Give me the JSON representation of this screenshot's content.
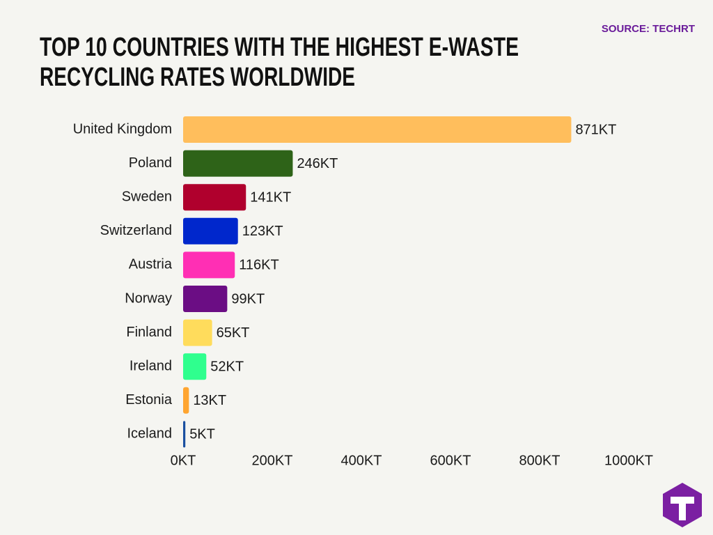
{
  "chart_data": {
    "type": "bar",
    "orientation": "horizontal",
    "title": [
      "TOP 10 COUNTRIES WITH THE HIGHEST E-WASTE",
      "RECYCLING RATES WORLDWIDE"
    ],
    "source": "SOURCE: TECHRT",
    "categories": [
      "United Kingdom",
      "Poland",
      "Sweden",
      "Switzerland",
      "Austria",
      "Norway",
      "Finland",
      "Ireland",
      "Estonia",
      "Iceland"
    ],
    "values": [
      871,
      246,
      141,
      123,
      116,
      99,
      65,
      52,
      13,
      5
    ],
    "value_labels": [
      "871KT",
      "246KT",
      "141KT",
      "123KT",
      "116KT",
      "99KT",
      "65KT",
      "52KT",
      "13KT",
      "5KT"
    ],
    "colors": [
      "#ffbe5c",
      "#2e6318",
      "#b0002d",
      "#0027cc",
      "#ff2fb4",
      "#6b0d84",
      "#ffdc5c",
      "#2fff8e",
      "#ffa530",
      "#1a4fa0"
    ],
    "xlim": [
      0,
      1000
    ],
    "xticks": [
      {
        "value": 0,
        "label": "0KT"
      },
      {
        "value": 200,
        "label": "200KT"
      },
      {
        "value": 400,
        "label": "400KT"
      },
      {
        "value": 600,
        "label": "600KT"
      },
      {
        "value": 800,
        "label": "800KT"
      },
      {
        "value": 1000,
        "label": "1000KT"
      }
    ],
    "grid": false
  }
}
